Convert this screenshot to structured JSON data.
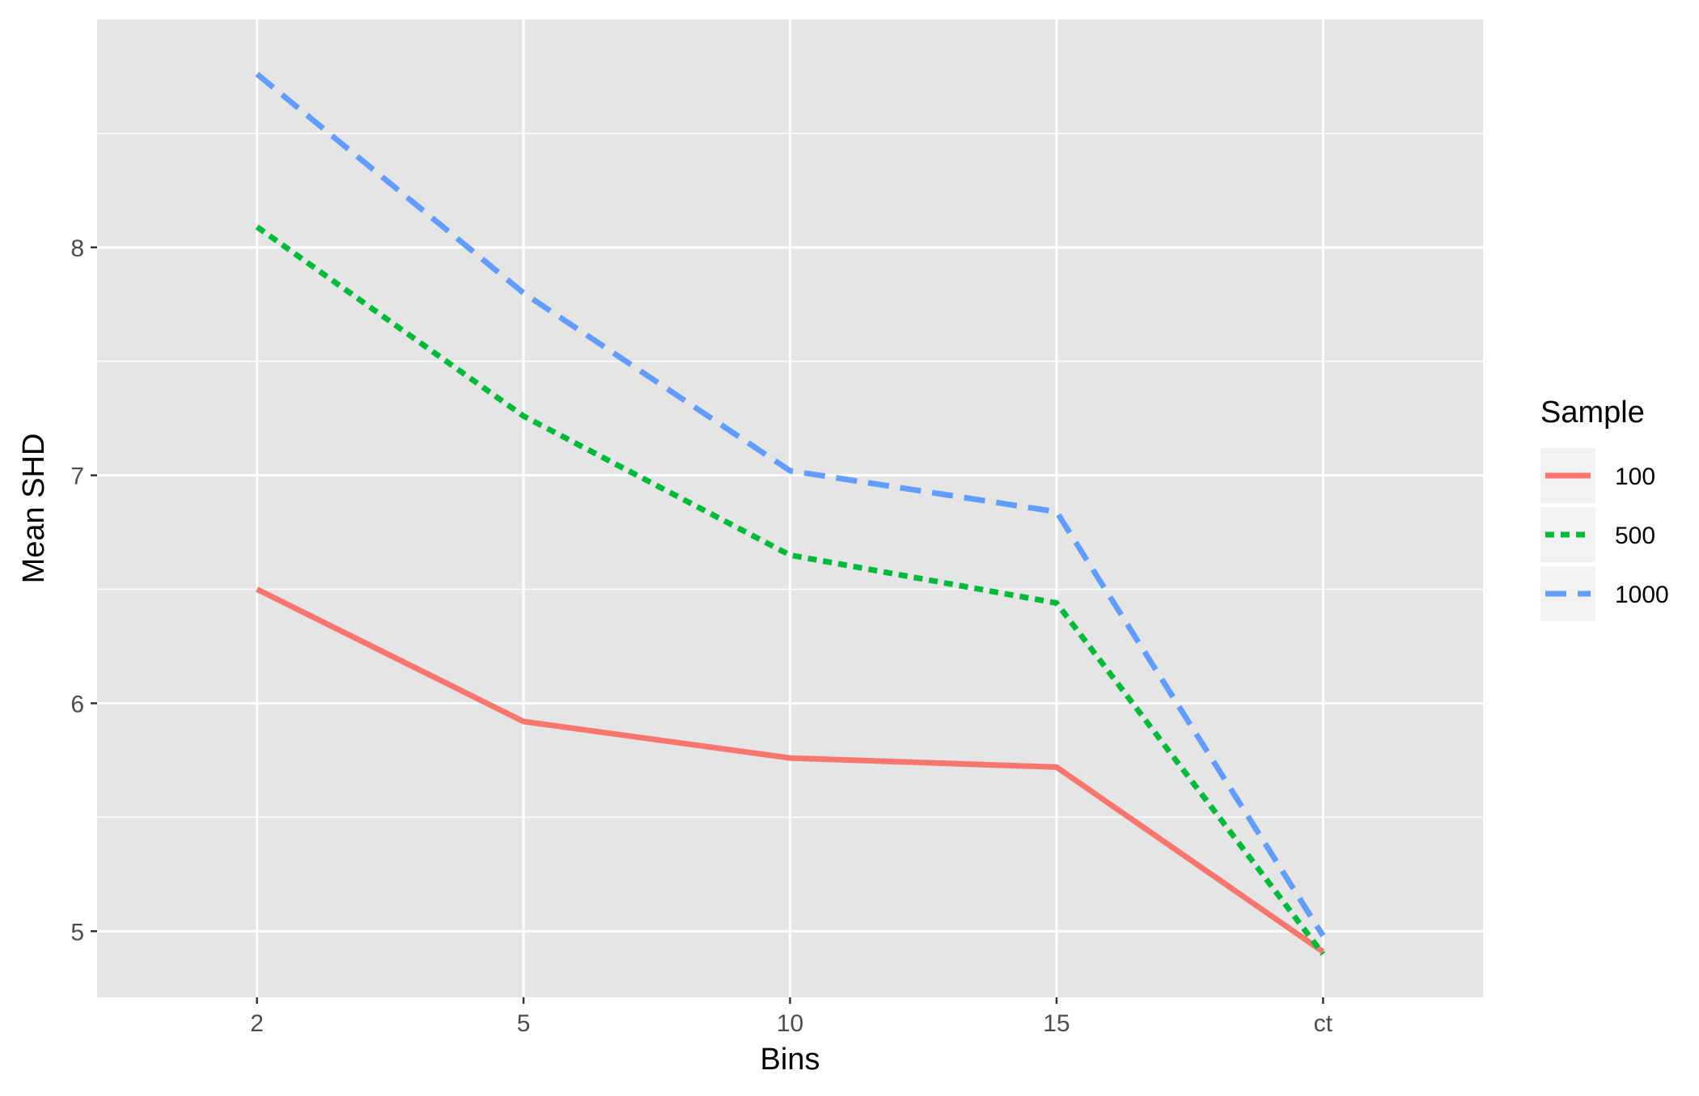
{
  "chart_data": {
    "type": "line",
    "title": "",
    "xlabel": "Bins",
    "ylabel": "Mean SHD",
    "categories": [
      "2",
      "5",
      "10",
      "15",
      "ct"
    ],
    "y_ticks": [
      5,
      6,
      7,
      8
    ],
    "ylim": [
      4.71,
      9.0
    ],
    "grid": true,
    "legend": {
      "title": "Sample",
      "placement": "right"
    },
    "series": [
      {
        "name": "100",
        "values": [
          6.5,
          5.92,
          5.76,
          5.72,
          4.91
        ],
        "color": "#F8766D",
        "dash": "solid"
      },
      {
        "name": "500",
        "values": [
          8.09,
          7.26,
          6.65,
          6.44,
          4.9
        ],
        "color": "#00BA38",
        "dash": "dotted"
      },
      {
        "name": "1000",
        "values": [
          8.76,
          7.8,
          7.02,
          6.84,
          4.98
        ],
        "color": "#619CFF",
        "dash": "dashed"
      }
    ],
    "colors": {
      "panel": "#E5E5E5",
      "grid": "#FFFFFF",
      "axis_text": "#4D4D4D",
      "key_bg": "#F2F2F2"
    }
  }
}
